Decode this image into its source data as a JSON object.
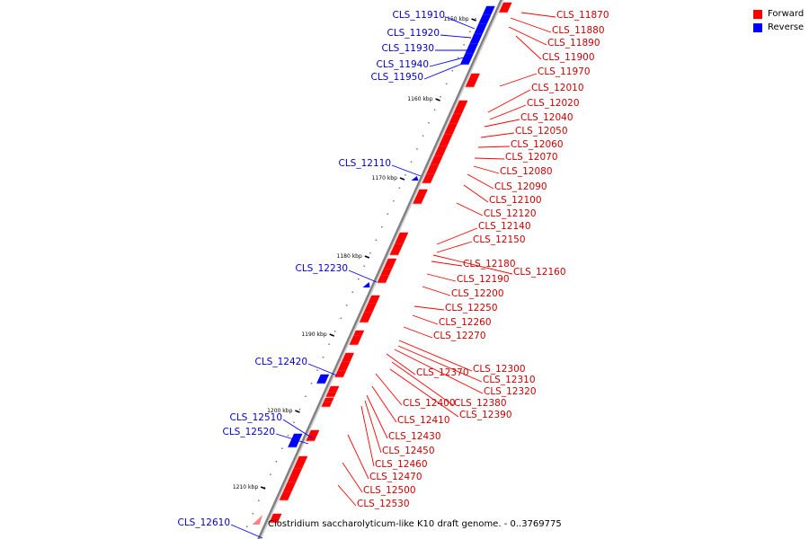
{
  "legend": {
    "forward_label": "Forward",
    "reverse_label": "Reverse",
    "forward_color": "#ff0000",
    "reverse_color": "#0000ff"
  },
  "caption": "Clostridium saccharolyticum-like K10 draft genome. - 0..3769775",
  "ticks": [
    "1150 kbp",
    "1160 kbp",
    "1170 kbp",
    "1180 kbp",
    "1190 kbp",
    "1200 kbp",
    "1210 kbp"
  ],
  "reverse_genes": [
    "CLS_11910",
    "CLS_11920",
    "CLS_11930",
    "CLS_11940",
    "CLS_11950",
    "CLS_12110",
    "CLS_12230",
    "CLS_12420",
    "CLS_12510",
    "CLS_12520",
    "CLS_12610"
  ],
  "forward_genes": [
    "CLS_11870",
    "CLS_11880",
    "CLS_11890",
    "CLS_11900",
    "CLS_11970",
    "CLS_12010",
    "CLS_12020",
    "CLS_12040",
    "CLS_12050",
    "CLS_12060",
    "CLS_12070",
    "CLS_12080",
    "CLS_12090",
    "CLS_12100",
    "CLS_12120",
    "CLS_12140",
    "CLS_12150",
    "CLS_12180",
    "CLS_12160",
    "CLS_12190",
    "CLS_12200",
    "CLS_12250",
    "CLS_12260",
    "CLS_12270",
    "CLS_12300",
    "CLS_12370",
    "CLS_12310",
    "CLS_12320",
    "CLS_12380",
    "CLS_12400",
    "CLS_12390",
    "CLS_12410",
    "CLS_12430",
    "CLS_12450",
    "CLS_12460",
    "CLS_12470",
    "CLS_12500",
    "CLS_12530"
  ]
}
